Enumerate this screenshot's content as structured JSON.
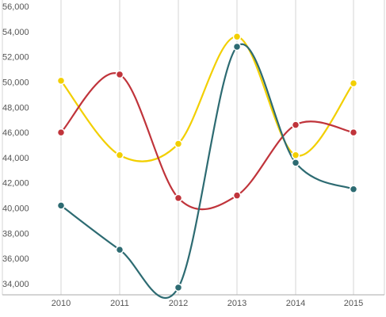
{
  "chart_data": {
    "type": "line",
    "title": "",
    "xlabel": "",
    "ylabel": "",
    "categories": [
      "2010",
      "2011",
      "2012",
      "2013",
      "2014",
      "2015"
    ],
    "ylim": [
      33000,
      56000
    ],
    "y_ticks": [
      "34,000",
      "36,000",
      "38,000",
      "40,000",
      "42,000",
      "44,000",
      "46,000",
      "48,000",
      "50,000",
      "52,000",
      "54,000",
      "56,000"
    ],
    "y_tick_values": [
      34000,
      36000,
      38000,
      40000,
      42000,
      44000,
      46000,
      48000,
      50000,
      52000,
      54000,
      56000
    ],
    "grid": "vertical",
    "curve": "smooth",
    "series": [
      {
        "color": "#f2cf00",
        "values": [
          50600,
          44700,
          45600,
          54100,
          44700,
          50400
        ]
      },
      {
        "color": "#c0343b",
        "values": [
          46500,
          51100,
          41300,
          41500,
          47100,
          46500
        ]
      },
      {
        "color": "#2d6b72",
        "values": [
          40700,
          37200,
          34200,
          53300,
          44100,
          42000
        ]
      }
    ]
  }
}
